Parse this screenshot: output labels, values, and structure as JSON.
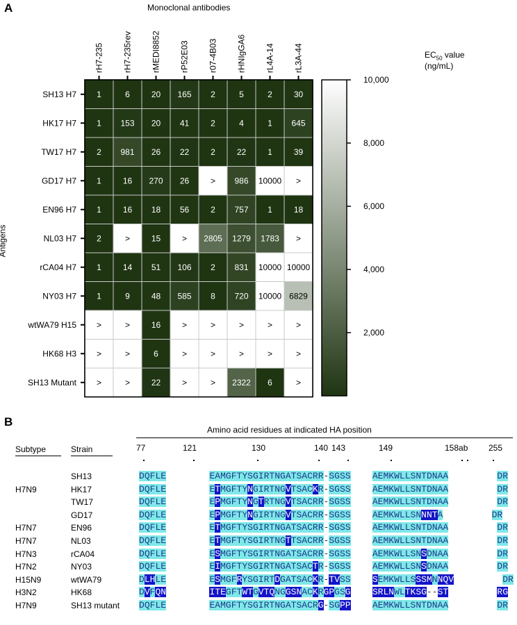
{
  "panel_a": {
    "letter": "A",
    "top_title": "Monoclonal antibodies",
    "y_title": "Antigens",
    "colorbar_title_1": "EC",
    "colorbar_title_sub": "50",
    "colorbar_title_2": " value",
    "colorbar_title_3": "(ng/mL)"
  },
  "chart_data": {
    "type": "heatmap",
    "columns": [
      "rH7-235",
      "rH7-235rev",
      "rMEDI8852",
      "rP52E03",
      "r07-4B03",
      "rHNIgGA6",
      "rL4A-14",
      "rL3A-44"
    ],
    "rows": [
      "SH13 H7",
      "HK17 H7",
      "TW17 H7",
      "GD17 H7",
      "EN96 H7",
      "NL03 H7",
      "rCA04 H7",
      "NY03 H7",
      "wtWA79 H15",
      "HK68 H3",
      "SH13 Mutant"
    ],
    "cells": [
      [
        "1",
        "6",
        "20",
        "165",
        "2",
        "5",
        "2",
        "30"
      ],
      [
        "1",
        "153",
        "20",
        "41",
        "2",
        "4",
        "1",
        "645"
      ],
      [
        "2",
        "981",
        "26",
        "22",
        "2",
        "22",
        "1",
        "39"
      ],
      [
        "1",
        "16",
        "270",
        "26",
        ">",
        "986",
        "10000",
        ">"
      ],
      [
        "1",
        "16",
        "18",
        "56",
        "2",
        "757",
        "1",
        "18"
      ],
      [
        "2",
        ">",
        "15",
        ">",
        "2805",
        "1279",
        "1783",
        ">"
      ],
      [
        "1",
        "14",
        "51",
        "106",
        "2",
        "831",
        "10000",
        "10000"
      ],
      [
        "1",
        "9",
        "48",
        "585",
        "8",
        "720",
        "10000",
        "6829"
      ],
      [
        ">",
        ">",
        "16",
        ">",
        ">",
        ">",
        ">",
        ">"
      ],
      [
        ">",
        ">",
        "6",
        ">",
        ">",
        ">",
        ">",
        ">"
      ],
      [
        ">",
        ">",
        "22",
        ">",
        ">",
        "2322",
        "6",
        ">"
      ]
    ],
    "colorbar": {
      "min": 0,
      "max": 10000,
      "ticks": [
        "10,000",
        "8,000",
        "6,000",
        "4,000",
        "2,000"
      ],
      "tick_values": [
        10000,
        8000,
        6000,
        4000,
        2000
      ]
    },
    "colors": {
      "low": "#1f3512",
      "high": "#ffffff"
    }
  },
  "panel_b": {
    "letter": "B",
    "title": "Amino acid residues at indicated HA position",
    "col_headers": {
      "subtype": "Subtype",
      "strain": "Strain"
    },
    "positions": [
      "77",
      "121",
      "130",
      "140",
      "143",
      "149",
      "158ab",
      "255"
    ],
    "rows": [
      {
        "subtype": "",
        "strain": "SH13",
        "seq": "DQFLE EAMGFTYSGIRTNGATSACRR-SGSS AEMKWLLSNTDNAA DR"
      },
      {
        "subtype": "H7N9",
        "strain": "HK17",
        "seq": "DQFLE ETMGFTYNGIRTNGVTSACKR-SGSS AEMKWLLSNTDNAA DR"
      },
      {
        "subtype": "",
        "strain": "TW17",
        "seq": "DQFLE EPMGFTYNGTRTNGVTSACRR-SGSS AEMKWLLSNTDNAA DR"
      },
      {
        "subtype": "",
        "strain": "GD17",
        "seq": "DQFLE EPMGFTYNGIRTNGVTSACRR-SGSS AEMKWLLSNNNTA DR"
      },
      {
        "subtype": "H7N7",
        "strain": "EN96",
        "seq": "DQFLE ETMGFTYSGIRTNGATSACRR-SGSS AEMKWLLSNTDNAA DR"
      },
      {
        "subtype": "H7N7",
        "strain": "NL03",
        "seq": "DQFLE ETMGFTYSGIRTNGTTSACRR-SGSS AEMKWLLSNTDNAA DR"
      },
      {
        "subtype": "H7N3",
        "strain": "rCA04",
        "seq": "DQFLE ESMGFTYSGIRTNGATSACRR-SGSS AEMKWLLSNSDNAA DR"
      },
      {
        "subtype": "H7N2",
        "strain": "NY03",
        "seq": "DQFLE EIMGFTYSGIRTNGATSACTR-SGSS AEMKWLLSNSDNAA DR"
      },
      {
        "subtype": "H15N9",
        "strain": "wtWA79",
        "seq": "DLHLE ESMGFRYSGIRTDGATSACKR-TVSS SEMKWLLSSSMNNQV DR"
      },
      {
        "subtype": "H3N2",
        "strain": "HK68",
        "seq": "DVFQN ITEGFTWTGVTQNGGSNACKRGPGSG SRLNWLTKSG--ST RG"
      },
      {
        "subtype": "H7N9",
        "strain": "SH13 mutant",
        "seq": "DQFLE EAMGFTYSGIRTNGATSACRG-SGPP AEMKWLLSNTDNAA DR"
      }
    ]
  }
}
